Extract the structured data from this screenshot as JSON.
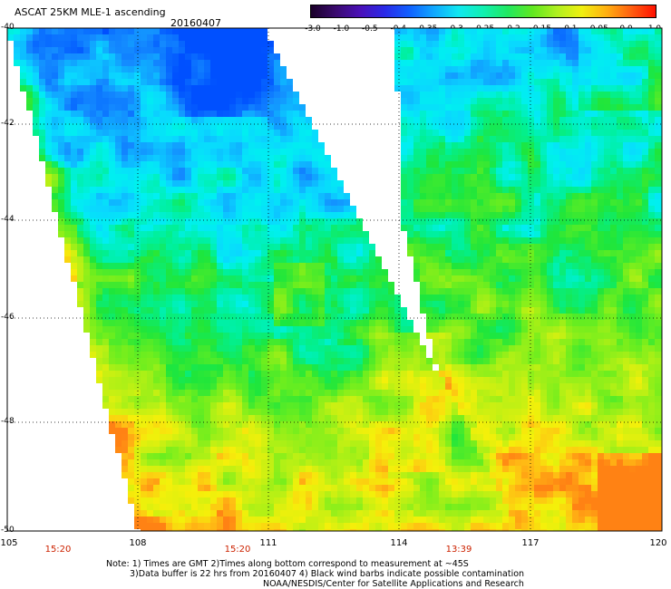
{
  "header": {
    "title": "ASCAT 25KM MLE-1 ascending",
    "date": "20160407"
  },
  "colorbar": {
    "labels": [
      "-3.0",
      "-1.0",
      "-0.5",
      "-0.4",
      "-0.35",
      "-0.3",
      "-0.25",
      "-0.2",
      "-0.15",
      "-0.1",
      "-0.05",
      "0.0",
      "1.0"
    ],
    "colors": [
      "#1a0028",
      "#3a0a6e",
      "#4a10b8",
      "#2a2ae8",
      "#1060ff",
      "#10a8ff",
      "#10e8f0",
      "#10f0b0",
      "#20e860",
      "#60e820",
      "#b0f020",
      "#f0f010",
      "#ffb010",
      "#ff6010",
      "#ff1000"
    ]
  },
  "map": {
    "lat_labels": [
      "-40",
      "-42",
      "-44",
      "-46",
      "-48",
      "-50"
    ],
    "lon_labels": [
      "105",
      "108",
      "111",
      "114",
      "117",
      "120"
    ],
    "time_labels": [
      "15:20",
      "15:20",
      "13:39"
    ],
    "scale_range": [
      -0.4,
      0.0
    ]
  },
  "footer": {
    "note_line1": "Note: 1) Times are GMT 2)Times along bottom correspond to measurement at ~45S",
    "note_line2": "3)Data buffer is 22 hrs from 20160407 4) Black wind barbs indicate possible contamination",
    "credit": "NOAA/NESDIS/Center for Satellite Applications and Research"
  }
}
